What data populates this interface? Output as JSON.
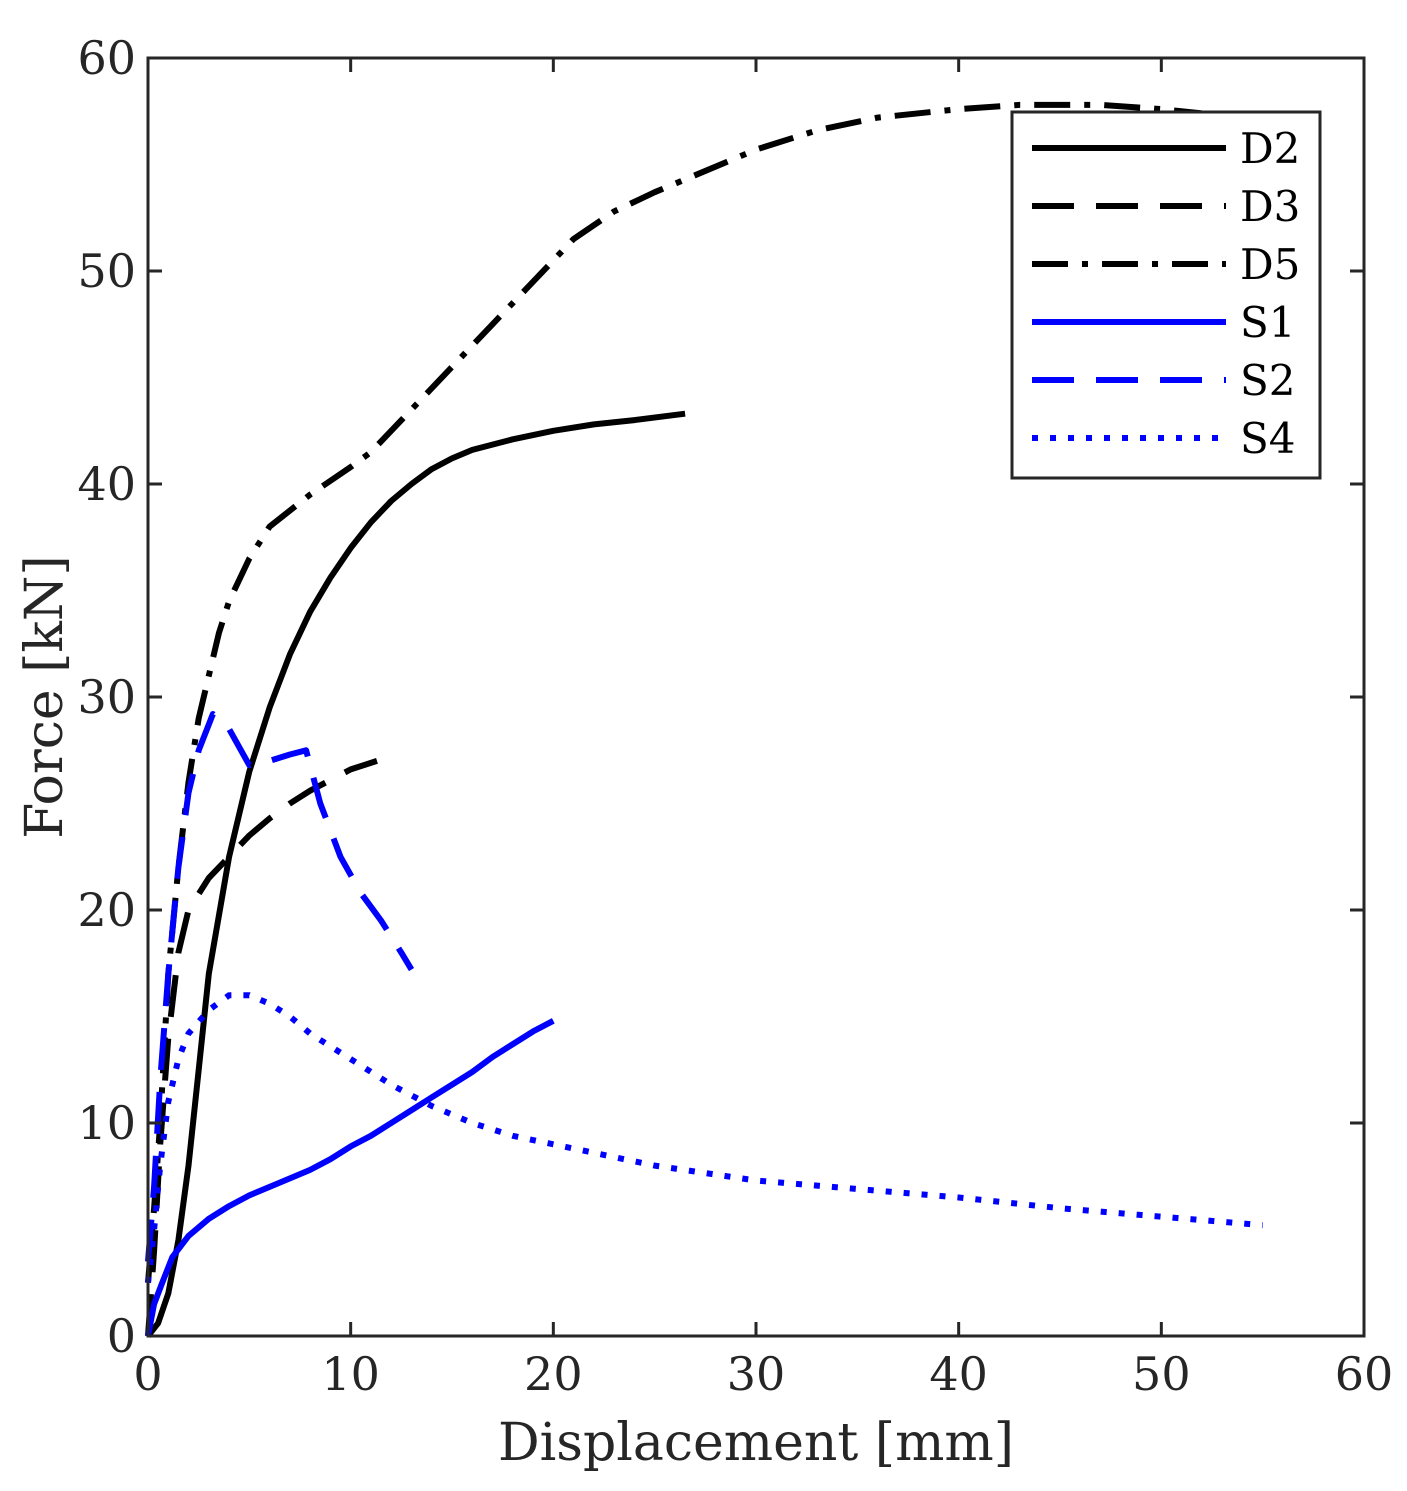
{
  "chart_data": {
    "type": "line",
    "xlabel": "Displacement [mm]",
    "ylabel": "Force [kN]",
    "xlim": [
      0,
      60
    ],
    "ylim": [
      0,
      60
    ],
    "xticks": [
      "0",
      "10",
      "20",
      "30",
      "40",
      "50",
      "60"
    ],
    "yticks": [
      "0",
      "10",
      "20",
      "30",
      "40",
      "50",
      "60"
    ],
    "grid": false,
    "legend_position": "top-right",
    "series": [
      {
        "name": "D2",
        "color": "#000000",
        "dash": "solid",
        "points": [
          [
            0,
            0
          ],
          [
            0.5,
            0.6
          ],
          [
            1,
            2
          ],
          [
            1.5,
            4.5
          ],
          [
            2,
            8
          ],
          [
            2.5,
            12.5
          ],
          [
            3,
            17
          ],
          [
            4,
            22.5
          ],
          [
            5,
            26.5
          ],
          [
            6,
            29.5
          ],
          [
            7,
            32
          ],
          [
            8,
            34
          ],
          [
            9,
            35.6
          ],
          [
            10,
            37
          ],
          [
            11,
            38.2
          ],
          [
            12,
            39.2
          ],
          [
            13,
            40
          ],
          [
            14,
            40.7
          ],
          [
            15,
            41.2
          ],
          [
            16,
            41.6
          ],
          [
            18,
            42.1
          ],
          [
            20,
            42.5
          ],
          [
            22,
            42.8
          ],
          [
            24,
            43
          ],
          [
            26.5,
            43.3
          ]
        ]
      },
      {
        "name": "D3",
        "color": "#000000",
        "dash": "dashed",
        "points": [
          [
            0,
            0
          ],
          [
            0.3,
            4
          ],
          [
            0.6,
            9
          ],
          [
            1,
            14
          ],
          [
            1.5,
            18
          ],
          [
            2,
            20
          ],
          [
            3,
            21.5
          ],
          [
            4,
            22.5
          ],
          [
            5,
            23.5
          ],
          [
            6,
            24.3
          ],
          [
            7,
            25
          ],
          [
            8,
            25.6
          ],
          [
            9,
            26.1
          ],
          [
            10,
            26.6
          ],
          [
            11.3,
            27
          ]
        ]
      },
      {
        "name": "D5",
        "color": "#000000",
        "dash": "dashdot",
        "points": [
          [
            0,
            2.5
          ],
          [
            0.3,
            6
          ],
          [
            0.6,
            10
          ],
          [
            1,
            17
          ],
          [
            1.5,
            22
          ],
          [
            2,
            26
          ],
          [
            2.5,
            29
          ],
          [
            3,
            31
          ],
          [
            3.5,
            33
          ],
          [
            4,
            34.5
          ],
          [
            5,
            36.5
          ],
          [
            6,
            38
          ],
          [
            8,
            39.5
          ],
          [
            10,
            40.8
          ],
          [
            11,
            41.5
          ],
          [
            13,
            43.5
          ],
          [
            15,
            45.5
          ],
          [
            17,
            47.5
          ],
          [
            19,
            49.5
          ],
          [
            21,
            51.5
          ],
          [
            23,
            52.8
          ],
          [
            25,
            53.7
          ],
          [
            27,
            54.5
          ],
          [
            30,
            55.7
          ],
          [
            33,
            56.6
          ],
          [
            36,
            57.2
          ],
          [
            40,
            57.6
          ],
          [
            43,
            57.8
          ],
          [
            47,
            57.8
          ],
          [
            50,
            57.6
          ],
          [
            52,
            57.4
          ]
        ]
      },
      {
        "name": "S1",
        "color": "#0000ff",
        "dash": "solid",
        "points": [
          [
            0,
            0
          ],
          [
            0.3,
            1.5
          ],
          [
            0.7,
            2.5
          ],
          [
            1.2,
            3.7
          ],
          [
            2,
            4.7
          ],
          [
            3,
            5.5
          ],
          [
            4,
            6.1
          ],
          [
            5,
            6.6
          ],
          [
            6,
            7
          ],
          [
            7,
            7.4
          ],
          [
            8,
            7.8
          ],
          [
            9,
            8.3
          ],
          [
            10,
            8.9
          ],
          [
            11,
            9.4
          ],
          [
            12,
            10
          ],
          [
            13,
            10.6
          ],
          [
            14,
            11.2
          ],
          [
            15,
            11.8
          ],
          [
            16,
            12.4
          ],
          [
            17,
            13.1
          ],
          [
            18,
            13.7
          ],
          [
            19,
            14.3
          ],
          [
            20,
            14.8
          ]
        ]
      },
      {
        "name": "S2",
        "color": "#0000ff",
        "dash": "dashed",
        "points": [
          [
            0,
            3.5
          ],
          [
            0.3,
            7
          ],
          [
            0.6,
            12
          ],
          [
            1,
            17
          ],
          [
            1.5,
            22
          ],
          [
            2,
            25.5
          ],
          [
            2.5,
            27.5
          ],
          [
            3.2,
            29.2
          ],
          [
            4,
            28.5
          ],
          [
            5,
            26.8
          ],
          [
            6,
            27
          ],
          [
            7,
            27.3
          ],
          [
            7.8,
            27.5
          ],
          [
            8.5,
            25
          ],
          [
            9.5,
            22.5
          ],
          [
            10.5,
            20.8
          ],
          [
            11.5,
            19.5
          ],
          [
            12.5,
            18
          ],
          [
            13,
            17.2
          ]
        ]
      },
      {
        "name": "S4",
        "color": "#0000ff",
        "dash": "dotted",
        "points": [
          [
            0,
            2.5
          ],
          [
            0.3,
            5
          ],
          [
            0.6,
            8
          ],
          [
            1,
            11
          ],
          [
            1.5,
            13
          ],
          [
            2,
            14.2
          ],
          [
            3,
            15.3
          ],
          [
            4,
            16
          ],
          [
            5,
            16
          ],
          [
            6,
            15.6
          ],
          [
            7,
            15
          ],
          [
            8,
            14.2
          ],
          [
            10,
            13
          ],
          [
            12,
            11.8
          ],
          [
            14,
            10.8
          ],
          [
            16,
            10
          ],
          [
            18,
            9.4
          ],
          [
            20,
            9
          ],
          [
            25,
            8
          ],
          [
            30,
            7.3
          ],
          [
            35,
            6.9
          ],
          [
            40,
            6.5
          ],
          [
            45,
            6
          ],
          [
            50,
            5.6
          ],
          [
            55,
            5.2
          ]
        ]
      }
    ]
  }
}
